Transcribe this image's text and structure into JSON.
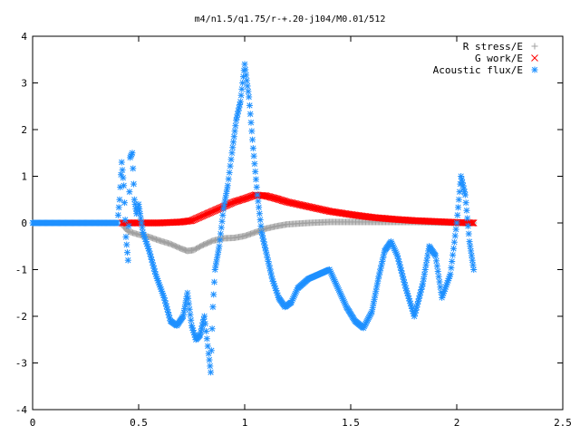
{
  "chart_data": {
    "type": "scatter",
    "title": "m4/n1.5/q1.75/r-+.20-j104/M0.01/512",
    "xlabel": "",
    "ylabel": "",
    "xlim": [
      0,
      2.5
    ],
    "ylim": [
      -4,
      4
    ],
    "xticks": [
      "0",
      "0.5",
      "1",
      "1.5",
      "2",
      "2.5"
    ],
    "yticks": [
      "-4",
      "-3",
      "-2",
      "-1",
      "0",
      "1",
      "2",
      "3",
      "4"
    ],
    "legend_position": "top-right",
    "grid": false,
    "series": [
      {
        "name": "R stress/E",
        "marker": "plus",
        "color": "#a0a0a0",
        "points": [
          [
            0.43,
            -0.08
          ],
          [
            0.45,
            -0.18
          ],
          [
            0.5,
            -0.25
          ],
          [
            0.55,
            -0.3
          ],
          [
            0.6,
            -0.38
          ],
          [
            0.65,
            -0.45
          ],
          [
            0.7,
            -0.55
          ],
          [
            0.73,
            -0.6
          ],
          [
            0.76,
            -0.58
          ],
          [
            0.8,
            -0.48
          ],
          [
            0.85,
            -0.38
          ],
          [
            0.9,
            -0.33
          ],
          [
            0.95,
            -0.32
          ],
          [
            1.0,
            -0.28
          ],
          [
            1.05,
            -0.2
          ],
          [
            1.1,
            -0.12
          ],
          [
            1.15,
            -0.07
          ],
          [
            1.2,
            -0.03
          ],
          [
            1.3,
            0.0
          ],
          [
            1.4,
            0.02
          ],
          [
            1.5,
            0.02
          ],
          [
            1.6,
            0.02
          ],
          [
            1.7,
            0.02
          ],
          [
            1.8,
            0.02
          ],
          [
            1.9,
            0.01
          ],
          [
            2.0,
            0.0
          ],
          [
            2.08,
            0.0
          ]
        ]
      },
      {
        "name": "G work/E",
        "marker": "cross",
        "color": "#ff0000",
        "points": [
          [
            0.42,
            0.0
          ],
          [
            0.5,
            0.0
          ],
          [
            0.6,
            0.0
          ],
          [
            0.7,
            0.02
          ],
          [
            0.75,
            0.05
          ],
          [
            0.8,
            0.15
          ],
          [
            0.85,
            0.25
          ],
          [
            0.9,
            0.35
          ],
          [
            0.95,
            0.45
          ],
          [
            1.0,
            0.52
          ],
          [
            1.05,
            0.6
          ],
          [
            1.1,
            0.58
          ],
          [
            1.15,
            0.52
          ],
          [
            1.2,
            0.45
          ],
          [
            1.3,
            0.35
          ],
          [
            1.4,
            0.25
          ],
          [
            1.5,
            0.18
          ],
          [
            1.6,
            0.12
          ],
          [
            1.7,
            0.08
          ],
          [
            1.8,
            0.05
          ],
          [
            1.9,
            0.03
          ],
          [
            2.0,
            0.01
          ],
          [
            2.08,
            0.0
          ]
        ]
      },
      {
        "name": "Acoustic flux/E",
        "marker": "star",
        "color": "#1e90ff",
        "points": [
          [
            0.0,
            0.0
          ],
          [
            0.1,
            0.0
          ],
          [
            0.2,
            0.0
          ],
          [
            0.3,
            0.0
          ],
          [
            0.4,
            0.0
          ],
          [
            0.41,
            0.5
          ],
          [
            0.42,
            1.3
          ],
          [
            0.43,
            0.8
          ],
          [
            0.44,
            -0.3
          ],
          [
            0.45,
            -0.8
          ],
          [
            0.46,
            1.4
          ],
          [
            0.47,
            1.5
          ],
          [
            0.48,
            0.5
          ],
          [
            0.49,
            0.2
          ],
          [
            0.5,
            0.4
          ],
          [
            0.51,
            0.1
          ],
          [
            0.52,
            -0.2
          ],
          [
            0.55,
            -0.6
          ],
          [
            0.58,
            -1.1
          ],
          [
            0.62,
            -1.6
          ],
          [
            0.65,
            -2.1
          ],
          [
            0.68,
            -2.2
          ],
          [
            0.71,
            -2.0
          ],
          [
            0.73,
            -1.5
          ],
          [
            0.75,
            -2.2
          ],
          [
            0.77,
            -2.5
          ],
          [
            0.79,
            -2.4
          ],
          [
            0.81,
            -2.0
          ],
          [
            0.83,
            -2.8
          ],
          [
            0.84,
            -3.2
          ],
          [
            0.85,
            -1.8
          ],
          [
            0.86,
            -1.0
          ],
          [
            0.88,
            -0.5
          ],
          [
            0.9,
            0.3
          ],
          [
            0.92,
            0.8
          ],
          [
            0.94,
            1.5
          ],
          [
            0.96,
            2.2
          ],
          [
            0.98,
            2.6
          ],
          [
            1.0,
            3.4
          ],
          [
            1.02,
            2.7
          ],
          [
            1.04,
            1.6
          ],
          [
            1.06,
            0.6
          ],
          [
            1.08,
            -0.2
          ],
          [
            1.1,
            -0.6
          ],
          [
            1.13,
            -1.2
          ],
          [
            1.16,
            -1.6
          ],
          [
            1.19,
            -1.8
          ],
          [
            1.22,
            -1.7
          ],
          [
            1.25,
            -1.4
          ],
          [
            1.3,
            -1.2
          ],
          [
            1.35,
            -1.1
          ],
          [
            1.4,
            -1.0
          ],
          [
            1.44,
            -1.4
          ],
          [
            1.48,
            -1.8
          ],
          [
            1.52,
            -2.1
          ],
          [
            1.56,
            -2.25
          ],
          [
            1.6,
            -1.9
          ],
          [
            1.63,
            -1.2
          ],
          [
            1.66,
            -0.6
          ],
          [
            1.69,
            -0.4
          ],
          [
            1.72,
            -0.7
          ],
          [
            1.76,
            -1.4
          ],
          [
            1.8,
            -2.0
          ],
          [
            1.84,
            -1.3
          ],
          [
            1.87,
            -0.5
          ],
          [
            1.9,
            -0.7
          ],
          [
            1.93,
            -1.6
          ],
          [
            1.97,
            -1.1
          ],
          [
            2.0,
            0.0
          ],
          [
            2.02,
            1.0
          ],
          [
            2.04,
            0.6
          ],
          [
            2.06,
            -0.4
          ],
          [
            2.08,
            -1.0
          ]
        ]
      }
    ]
  }
}
